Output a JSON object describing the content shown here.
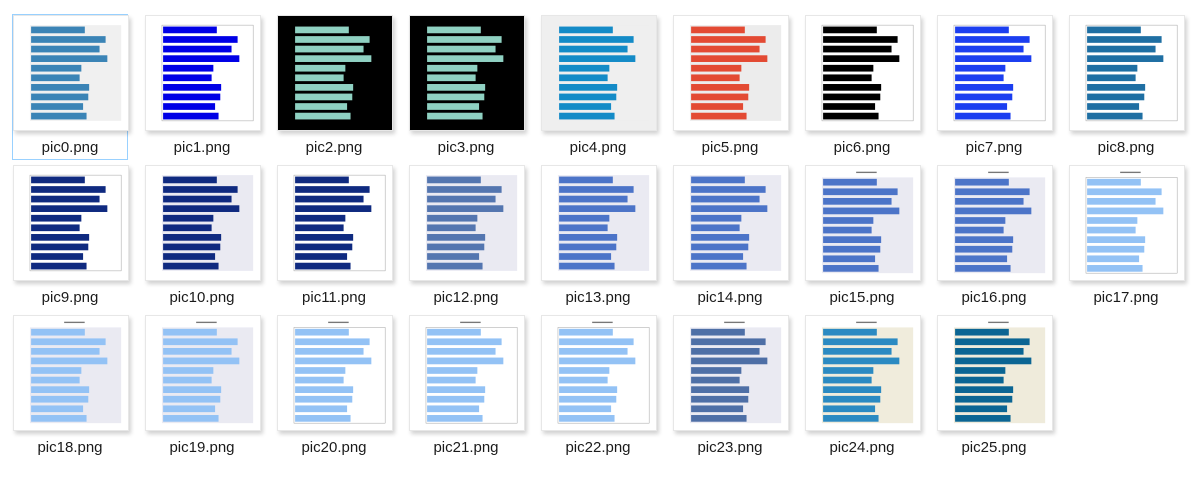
{
  "files": [
    {
      "name": "pic0.png",
      "selected": true,
      "bar": "#3b84b6",
      "plot_bg": "#f0f0f0",
      "page_bg": "#ffffff",
      "has_title": false
    },
    {
      "name": "pic1.png",
      "selected": false,
      "bar": "#0000e6",
      "plot_bg": "#ffffff",
      "page_bg": "#ffffff",
      "has_title": false
    },
    {
      "name": "pic2.png",
      "selected": false,
      "bar": "#8fd1c2",
      "plot_bg": "#000000",
      "page_bg": "#000000",
      "has_title": false
    },
    {
      "name": "pic3.png",
      "selected": false,
      "bar": "#8fd1c2",
      "plot_bg": "#000000",
      "page_bg": "#000000",
      "has_title": false
    },
    {
      "name": "pic4.png",
      "selected": false,
      "bar": "#148bc7",
      "plot_bg": "#efefef",
      "page_bg": "#efefef",
      "has_title": false
    },
    {
      "name": "pic5.png",
      "selected": false,
      "bar": "#e34a33",
      "plot_bg": "#ececec",
      "page_bg": "#ffffff",
      "has_title": false
    },
    {
      "name": "pic6.png",
      "selected": false,
      "bar": "#000000",
      "plot_bg": "#ffffff",
      "page_bg": "#ffffff",
      "has_title": false
    },
    {
      "name": "pic7.png",
      "selected": false,
      "bar": "#1b3ef0",
      "plot_bg": "#ffffff",
      "page_bg": "#ffffff",
      "has_title": false
    },
    {
      "name": "pic8.png",
      "selected": false,
      "bar": "#1f6fa3",
      "plot_bg": "#ffffff",
      "page_bg": "#ffffff",
      "has_title": false
    },
    {
      "name": "pic9.png",
      "selected": false,
      "bar": "#0f2a80",
      "plot_bg": "#ffffff",
      "page_bg": "#ffffff",
      "has_title": false
    },
    {
      "name": "pic10.png",
      "selected": false,
      "bar": "#0f2a80",
      "plot_bg": "#eaeaf2",
      "page_bg": "#ffffff",
      "has_title": false
    },
    {
      "name": "pic11.png",
      "selected": false,
      "bar": "#0f2a80",
      "plot_bg": "#ffffff",
      "page_bg": "#ffffff",
      "has_title": false
    },
    {
      "name": "pic12.png",
      "selected": false,
      "bar": "#5476b0",
      "plot_bg": "#eaeaf2",
      "page_bg": "#ffffff",
      "has_title": false
    },
    {
      "name": "pic13.png",
      "selected": false,
      "bar": "#4c74c8",
      "plot_bg": "#eaeaf2",
      "page_bg": "#ffffff",
      "has_title": false
    },
    {
      "name": "pic14.png",
      "selected": false,
      "bar": "#4c74c8",
      "plot_bg": "#eaeaf2",
      "page_bg": "#ffffff",
      "has_title": false
    },
    {
      "name": "pic15.png",
      "selected": false,
      "bar": "#4c74c8",
      "plot_bg": "#eaeaf2",
      "page_bg": "#ffffff",
      "has_title": true
    },
    {
      "name": "pic16.png",
      "selected": false,
      "bar": "#4c74c8",
      "plot_bg": "#eaeaf2",
      "page_bg": "#ffffff",
      "has_title": true
    },
    {
      "name": "pic17.png",
      "selected": false,
      "bar": "#93c2f5",
      "plot_bg": "#ffffff",
      "page_bg": "#ffffff",
      "has_title": true
    },
    {
      "name": "pic18.png",
      "selected": false,
      "bar": "#93c2f5",
      "plot_bg": "#eaeaf2",
      "page_bg": "#ffffff",
      "has_title": true
    },
    {
      "name": "pic19.png",
      "selected": false,
      "bar": "#93c2f5",
      "plot_bg": "#eaeaf2",
      "page_bg": "#ffffff",
      "has_title": true
    },
    {
      "name": "pic20.png",
      "selected": false,
      "bar": "#93c2f5",
      "plot_bg": "#ffffff",
      "page_bg": "#ffffff",
      "has_title": true
    },
    {
      "name": "pic21.png",
      "selected": false,
      "bar": "#93c2f5",
      "plot_bg": "#ffffff",
      "page_bg": "#ffffff",
      "has_title": true
    },
    {
      "name": "pic22.png",
      "selected": false,
      "bar": "#93c2f5",
      "plot_bg": "#ffffff",
      "page_bg": "#ffffff",
      "has_title": true
    },
    {
      "name": "pic23.png",
      "selected": false,
      "bar": "#4e6fa6",
      "plot_bg": "#eaeaf2",
      "page_bg": "#ffffff",
      "has_title": true
    },
    {
      "name": "pic24.png",
      "selected": false,
      "bar": "#2b8ac2",
      "plot_bg": "#f0ecdc",
      "page_bg": "#ffffff",
      "has_title": true
    },
    {
      "name": "pic25.png",
      "selected": false,
      "bar": "#0b6593",
      "plot_bg": "#efebdb",
      "page_bg": "#ffffff",
      "has_title": true
    }
  ],
  "thumbnail_bar_values": [
    0.62,
    0.86,
    0.79,
    0.88,
    0.58,
    0.56,
    0.67,
    0.66,
    0.6,
    0.64
  ]
}
